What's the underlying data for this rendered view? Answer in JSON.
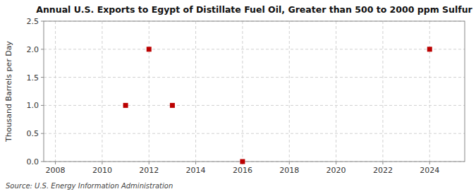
{
  "chart_data": {
    "type": "scatter",
    "title": "Annual U.S. Exports to Egypt of Distillate Fuel Oil, Greater than 500 to 2000 ppm Sulfur",
    "y_label": "Thousand Barrels per Day",
    "annotations": [
      "Source: U.S. Energy Information Administration"
    ],
    "x": [
      2011,
      2012,
      2013,
      2016,
      2024
    ],
    "values": [
      1.0,
      2.0,
      1.0,
      0.0,
      2.0
    ],
    "color": "#bb0000",
    "marker": "square",
    "xlim": [
      2007.5,
      2025.5
    ],
    "ylim": [
      0,
      2.5
    ],
    "xticks": [
      2008,
      2010,
      2012,
      2014,
      2016,
      2018,
      2020,
      2022,
      2024
    ],
    "yticks": [
      {
        "value": 0.0,
        "label": "0.0"
      },
      0.5,
      {
        "value": 1.0,
        "label": "1.0"
      },
      1.5,
      {
        "value": 2.0,
        "label": "2.0"
      },
      2.5
    ],
    "grid": true
  }
}
